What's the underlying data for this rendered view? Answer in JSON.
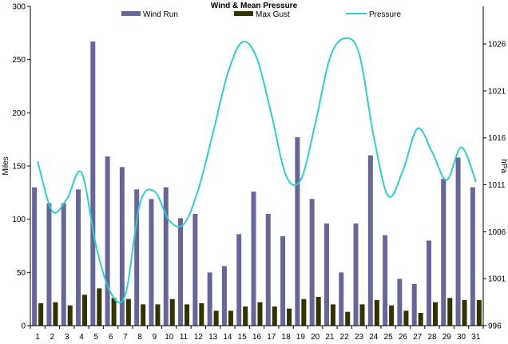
{
  "chart_data": {
    "type": "bar",
    "title": "Wind & Mean Pressure",
    "ylabel": "Miles",
    "y2label": "hPa",
    "categories": [
      "1",
      "2",
      "3",
      "4",
      "5",
      "6",
      "7",
      "8",
      "9",
      "10",
      "11",
      "12",
      "13",
      "14",
      "15",
      "16",
      "17",
      "18",
      "19",
      "20",
      "21",
      "22",
      "23",
      "24",
      "25",
      "26",
      "27",
      "28",
      "29",
      "30",
      "31"
    ],
    "ylim": [
      0,
      300
    ],
    "yticks": [
      "0",
      "50",
      "100",
      "150",
      "200",
      "250",
      "300"
    ],
    "y2lim": [
      996,
      1030
    ],
    "y2ticks": [
      "996",
      "1001",
      "1006",
      "1011",
      "1016",
      "1021",
      "1026"
    ],
    "legend_position": "top",
    "grid": false,
    "series": [
      {
        "name": "Wind Run",
        "type": "bar",
        "axis": "left",
        "color": "#666699",
        "values": [
          130,
          115,
          115,
          128,
          267,
          159,
          149,
          128,
          119,
          130,
          101,
          105,
          50,
          56,
          86,
          126,
          105,
          84,
          177,
          119,
          96,
          50,
          96,
          160,
          85,
          44,
          39,
          80,
          138,
          158,
          130
        ]
      },
      {
        "name": "Max Gust",
        "type": "bar",
        "axis": "left",
        "color": "#333300",
        "values": [
          21,
          22,
          19,
          29,
          35,
          26,
          25,
          20,
          20,
          25,
          20,
          21,
          14,
          14,
          18,
          22,
          18,
          16,
          25,
          27,
          20,
          13,
          20,
          24,
          19,
          14,
          12,
          22,
          26,
          24,
          24
        ]
      },
      {
        "name": "Pressure",
        "type": "line",
        "axis": "right",
        "color": "#33CCCC",
        "values": [
          1013.5,
          1008.2,
          1009.5,
          1012.3,
          1004.5,
          999.5,
          999.3,
          1009.0,
          1010.3,
          1007.2,
          1006.8,
          1010.5,
          1016.5,
          1022.8,
          1026.2,
          1024.5,
          1018.5,
          1012.0,
          1011.5,
          1017.5,
          1024.5,
          1026.6,
          1025.0,
          1016.2,
          1009.8,
          1012.5,
          1017.0,
          1014.5,
          1011.5,
          1015.0,
          1011.3
        ]
      }
    ]
  }
}
